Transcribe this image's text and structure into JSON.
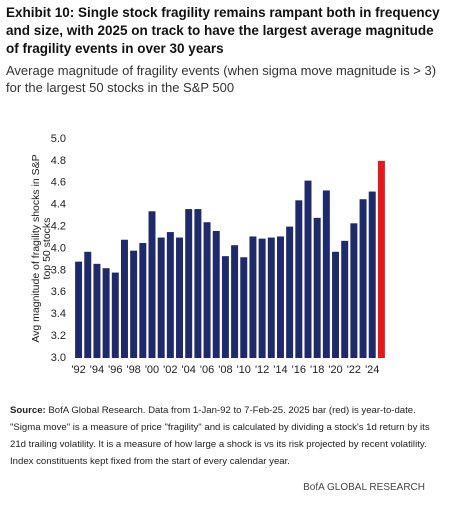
{
  "chart_data": {
    "type": "bar",
    "title": "Exhibit 10: Single stock fragility remains rampant both in frequency and size, with 2025 on track to have the largest average magnitude of fragility events in over 30 years",
    "subtitle": "Average magnitude of fragility events (when sigma move magnitude is > 3) for the largest 50 stocks in the S&P 500",
    "y_label": [
      "Avg magnitude of fragility shocks in S&P",
      "top 50 stocks"
    ],
    "categories": [
      "'92",
      null,
      "'94",
      null,
      "'96",
      null,
      "'98",
      null,
      "'00",
      null,
      "'02",
      null,
      "'04",
      null,
      "'06",
      null,
      "'08",
      null,
      "'10",
      null,
      "'12",
      null,
      "'14",
      null,
      "'16",
      null,
      "'18",
      null,
      "'20",
      null,
      "'22",
      null,
      "'24",
      null
    ],
    "values": [
      3.88,
      3.97,
      3.86,
      3.82,
      3.78,
      4.08,
      3.98,
      4.05,
      4.34,
      4.1,
      4.15,
      4.1,
      4.36,
      4.36,
      4.24,
      4.16,
      3.93,
      4.03,
      3.92,
      4.11,
      4.09,
      4.1,
      4.11,
      4.2,
      4.44,
      4.62,
      4.28,
      4.53,
      3.97,
      4.07,
      4.23,
      4.45,
      4.52,
      4.8
    ],
    "colors": [
      "#1f2a6b",
      "#1f2a6b",
      "#1f2a6b",
      "#1f2a6b",
      "#1f2a6b",
      "#1f2a6b",
      "#1f2a6b",
      "#1f2a6b",
      "#1f2a6b",
      "#1f2a6b",
      "#1f2a6b",
      "#1f2a6b",
      "#1f2a6b",
      "#1f2a6b",
      "#1f2a6b",
      "#1f2a6b",
      "#1f2a6b",
      "#1f2a6b",
      "#1f2a6b",
      "#1f2a6b",
      "#1f2a6b",
      "#1f2a6b",
      "#1f2a6b",
      "#1f2a6b",
      "#1f2a6b",
      "#1f2a6b",
      "#1f2a6b",
      "#1f2a6b",
      "#1f2a6b",
      "#1f2a6b",
      "#1f2a6b",
      "#1f2a6b",
      "#1f2a6b",
      "#e3191c"
    ],
    "ylim": [
      3.0,
      5.0
    ],
    "yticks": [
      {
        "value": 3.0,
        "label": "3.0"
      },
      {
        "value": 3.2,
        "label": "3.2"
      },
      {
        "value": 3.4,
        "label": "3.4"
      },
      {
        "value": 3.6,
        "label": "3.6"
      },
      {
        "value": 3.8,
        "label": "3.8"
      },
      {
        "value": 4.0,
        "label": "4.0"
      },
      {
        "value": 4.2,
        "label": "4.2"
      },
      {
        "value": 4.4,
        "label": "4.4"
      },
      {
        "value": 4.6,
        "label": "4.6"
      },
      {
        "value": 4.8,
        "label": "4.8"
      },
      {
        "value": 5.0,
        "label": "5.0"
      }
    ],
    "grid": false,
    "source_label": "Source:",
    "source": "BofA Global Research. Data from 1-Jan-92 to 7-Feb-25. 2025 bar (red) is year-to-date. \"Sigma move\" is a measure of price \"fragility\" and is calculated by dividing a stock's 1d return by its 21d trailing volatility. It is a measure of how large a shock is vs its risk projected by recent volatility. Index constituents kept fixed from the start of every calendar year.",
    "footer": "BofA GLOBAL RESEARCH"
  }
}
